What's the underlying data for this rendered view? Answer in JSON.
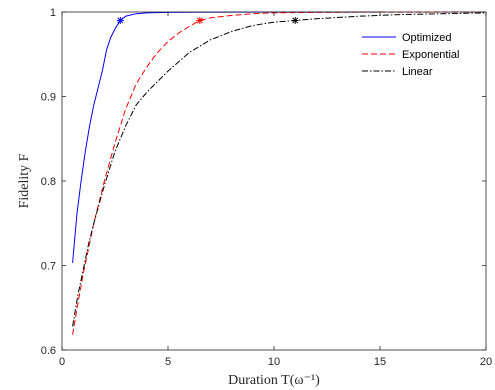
{
  "chart_data": {
    "type": "line",
    "xlabel": "Duration T(ω⁻¹)",
    "ylabel": "Fidelity F",
    "xlim": [
      0,
      20
    ],
    "ylim": [
      0.6,
      1.0
    ],
    "xticks": [
      "0",
      "5",
      "10",
      "15",
      "20"
    ],
    "yticks": [
      "0.6",
      "0.7",
      "0.8",
      "0.9",
      "1"
    ],
    "x_tick_values": [
      0,
      5,
      10,
      15,
      20
    ],
    "y_tick_values": [
      0.6,
      0.7,
      0.8,
      0.9,
      1.0
    ],
    "grid": false,
    "legend_position": "top-right",
    "series": [
      {
        "name": "Optimized",
        "color": "#0000ff",
        "dash": "solid",
        "x": [
          0.5,
          0.7,
          0.9,
          1.1,
          1.3,
          1.5,
          1.7,
          1.9,
          2.1,
          2.3,
          2.5,
          2.75,
          3.0,
          3.5,
          4.0,
          5.0,
          6.0,
          8.0,
          10.0,
          12.0,
          15.0
        ],
        "y": [
          0.703,
          0.76,
          0.8,
          0.835,
          0.865,
          0.89,
          0.91,
          0.93,
          0.955,
          0.97,
          0.98,
          0.99,
          0.995,
          0.998,
          0.999,
          0.9995,
          0.9997,
          0.9998,
          0.9999,
          0.9999,
          1.0
        ],
        "marker": {
          "x": 2.75,
          "y": 0.99
        }
      },
      {
        "name": "Exponential",
        "color": "#ff0000",
        "dash": "dashed",
        "x": [
          0.5,
          0.75,
          1.0,
          1.25,
          1.5,
          2.0,
          2.5,
          3.0,
          3.5,
          4.0,
          4.5,
          5.0,
          5.5,
          6.0,
          6.5,
          7.0,
          8.0,
          9.0,
          10.0,
          12.0,
          14.0,
          16.0,
          18.0,
          20.0
        ],
        "y": [
          0.618,
          0.655,
          0.69,
          0.72,
          0.75,
          0.8,
          0.845,
          0.885,
          0.915,
          0.935,
          0.952,
          0.965,
          0.975,
          0.983,
          0.99,
          0.993,
          0.996,
          0.998,
          0.999,
          0.9995,
          0.9998,
          0.9999,
          0.9999,
          1.0
        ],
        "marker": {
          "x": 6.5,
          "y": 0.99
        }
      },
      {
        "name": "Linear",
        "color": "#000000",
        "dash": "dashdot",
        "x": [
          0.5,
          0.75,
          1.0,
          1.25,
          1.5,
          2.0,
          2.5,
          3.0,
          3.5,
          4.0,
          5.0,
          6.0,
          7.0,
          8.0,
          9.0,
          10.0,
          11.0,
          12.0,
          14.0,
          16.0,
          18.0,
          20.0
        ],
        "y": [
          0.628,
          0.665,
          0.695,
          0.725,
          0.75,
          0.795,
          0.835,
          0.865,
          0.89,
          0.905,
          0.93,
          0.952,
          0.967,
          0.977,
          0.984,
          0.988,
          0.99,
          0.992,
          0.995,
          0.997,
          0.998,
          0.999
        ],
        "marker": {
          "x": 11.0,
          "y": 0.99
        }
      }
    ]
  }
}
